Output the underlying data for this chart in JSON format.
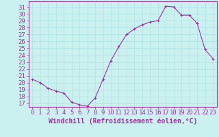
{
  "x": [
    0,
    1,
    2,
    3,
    4,
    5,
    6,
    7,
    8,
    9,
    10,
    11,
    12,
    13,
    14,
    15,
    16,
    17,
    18,
    19,
    20,
    21,
    22,
    23
  ],
  "y": [
    20.5,
    20.0,
    19.2,
    18.8,
    18.5,
    17.2,
    16.8,
    16.6,
    17.8,
    20.5,
    23.2,
    25.2,
    27.0,
    27.8,
    28.4,
    28.8,
    29.0,
    31.1,
    31.0,
    29.8,
    29.8,
    28.6,
    24.8,
    23.5
  ],
  "line_color": "#993399",
  "marker": "P",
  "marker_size": 2.5,
  "bg_color": "#caf0f0",
  "grid_color": "#aadddd",
  "ylabel_ticks": [
    17,
    18,
    19,
    20,
    21,
    22,
    23,
    24,
    25,
    26,
    27,
    28,
    29,
    30,
    31
  ],
  "xlabel": "Windchill (Refroidissement éolien,°C)",
  "xlabel_fontsize": 7,
  "tick_fontsize": 6.5,
  "ylim": [
    16.5,
    31.8
  ],
  "xlim": [
    -0.5,
    23.5
  ],
  "fig_width": 3.2,
  "fig_height": 2.0,
  "fig_dpi": 100
}
